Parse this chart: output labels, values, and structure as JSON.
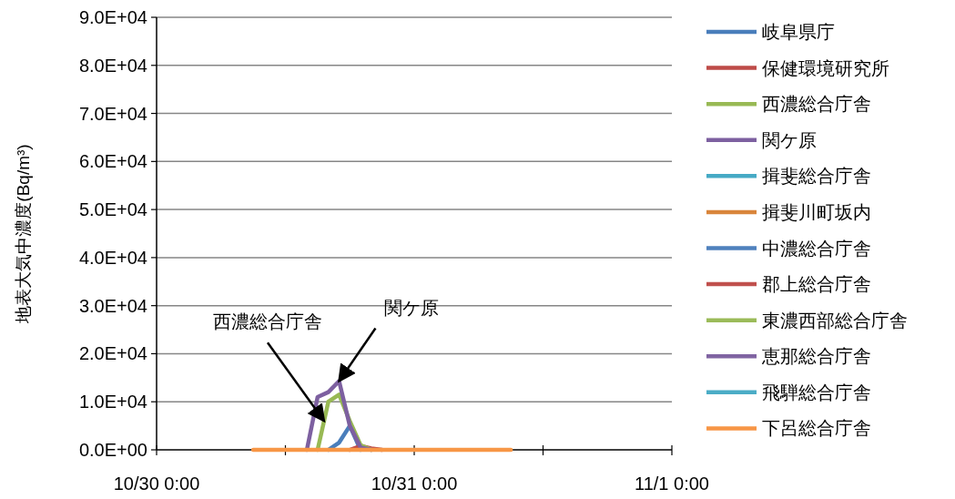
{
  "chart_data": {
    "type": "line",
    "ylabel": "地表大気中濃度(Bq/m³)",
    "x": [
      "--10-30T09:00",
      "--10-30T10:00",
      "--10-30T11:00",
      "--10-30T12:00",
      "--10-30T13:00",
      "--10-30T14:00",
      "--10-30T15:00",
      "--10-30T16:00",
      "--10-30T17:00",
      "--10-30T18:00",
      "--10-30T19:00",
      "--10-30T20:00",
      "--10-30T21:00",
      "--10-30T22:00",
      "--10-30T23:00",
      "--10-31T00:00",
      "--10-31T01:00",
      "--10-31T02:00",
      "--10-31T03:00",
      "--10-31T04:00",
      "--10-31T05:00",
      "--10-31T06:00",
      "--10-31T07:00",
      "--10-31T08:00",
      "--10-31T09:00"
    ],
    "xlim": [
      "--10-30T00:00",
      "--11-01T00:00"
    ],
    "xticks": [
      {
        "value": "--10-30T00:00",
        "label": "10/30 0:00"
      },
      {
        "value": "--10-30T12:00",
        "label": null
      },
      {
        "value": "--10-31T00:00",
        "label": "10/31 0:00"
      },
      {
        "value": "--10-31T12:00",
        "label": null
      },
      {
        "value": "--11-01T00:00",
        "label": "11/1 0:00"
      }
    ],
    "ylim": [
      0,
      90000
    ],
    "yticks": [
      {
        "value": 0,
        "label": "0.0E+00"
      },
      {
        "value": 10000,
        "label": "1.0E+04"
      },
      {
        "value": 20000,
        "label": "2.0E+04"
      },
      {
        "value": 30000,
        "label": "3.0E+04"
      },
      {
        "value": 40000,
        "label": "4.0E+04"
      },
      {
        "value": 50000,
        "label": "5.0E+04"
      },
      {
        "value": 60000,
        "label": "6.0E+04"
      },
      {
        "value": 70000,
        "label": "7.0E+04"
      },
      {
        "value": 80000,
        "label": "8.0E+04"
      },
      {
        "value": 90000,
        "label": "9.0E+04"
      }
    ],
    "grid": "y",
    "legend": "right",
    "marker": "none",
    "line_style": "solid",
    "series": [
      {
        "name": "岐阜県庁",
        "color": "#4a7ebb",
        "values": [
          null,
          null,
          null,
          null,
          null,
          null,
          null,
          0,
          1500,
          5000,
          0,
          null,
          null,
          null,
          null,
          null,
          null,
          null,
          null,
          null,
          null,
          null,
          null,
          null,
          null
        ]
      },
      {
        "name": "保健環境研究所",
        "color": "#be4b48",
        "values": [
          null,
          null,
          null,
          null,
          null,
          null,
          null,
          null,
          null,
          0,
          800,
          300,
          0,
          null,
          null,
          null,
          null,
          null,
          null,
          null,
          null,
          null,
          null,
          null,
          null
        ]
      },
      {
        "name": "西濃総合庁舎",
        "color": "#98b954",
        "values": [
          null,
          null,
          null,
          null,
          null,
          null,
          0,
          10000,
          11500,
          6000,
          1000,
          0,
          null,
          null,
          null,
          null,
          null,
          null,
          null,
          null,
          null,
          null,
          null,
          null,
          null
        ]
      },
      {
        "name": "関ケ原",
        "color": "#7d60a0",
        "values": [
          null,
          null,
          null,
          null,
          null,
          0,
          11000,
          12000,
          14300,
          5000,
          500,
          0,
          null,
          null,
          null,
          null,
          null,
          null,
          null,
          null,
          null,
          null,
          null,
          null,
          null
        ]
      },
      {
        "name": "揖斐総合庁舎",
        "color": "#46aac5",
        "values": [
          null,
          null,
          null,
          null,
          null,
          null,
          null,
          null,
          null,
          null,
          null,
          null,
          null,
          null,
          null,
          null,
          null,
          null,
          null,
          null,
          null,
          null,
          null,
          null,
          null
        ]
      },
      {
        "name": "揖斐川町坂内",
        "color": "#d9853b",
        "values": [
          null,
          null,
          null,
          null,
          null,
          null,
          null,
          null,
          null,
          null,
          null,
          null,
          null,
          null,
          null,
          null,
          null,
          null,
          null,
          null,
          null,
          null,
          null,
          null,
          null
        ]
      },
      {
        "name": "中濃総合庁舎",
        "color": "#4f81bd",
        "values": [
          null,
          null,
          null,
          null,
          null,
          null,
          null,
          null,
          null,
          null,
          null,
          null,
          null,
          null,
          null,
          null,
          null,
          null,
          null,
          null,
          null,
          null,
          null,
          null,
          null
        ]
      },
      {
        "name": "郡上総合庁舎",
        "color": "#c0504d",
        "values": [
          null,
          null,
          null,
          null,
          null,
          null,
          null,
          null,
          null,
          null,
          null,
          null,
          null,
          null,
          null,
          null,
          null,
          null,
          null,
          null,
          null,
          null,
          null,
          null,
          null
        ]
      },
      {
        "name": "東濃西部総合庁舎",
        "color": "#9bbb59",
        "values": [
          null,
          null,
          null,
          null,
          null,
          null,
          null,
          null,
          null,
          null,
          null,
          null,
          null,
          null,
          null,
          null,
          null,
          null,
          null,
          null,
          null,
          null,
          null,
          null,
          null
        ]
      },
      {
        "name": "恵那総合庁舎",
        "color": "#8064a2",
        "values": [
          null,
          null,
          null,
          null,
          null,
          null,
          null,
          null,
          null,
          null,
          null,
          null,
          null,
          null,
          null,
          null,
          null,
          null,
          null,
          null,
          null,
          null,
          null,
          null,
          null
        ]
      },
      {
        "name": "飛騨総合庁舎",
        "color": "#4bacc6",
        "values": [
          null,
          null,
          null,
          null,
          null,
          null,
          null,
          null,
          null,
          null,
          null,
          null,
          null,
          null,
          null,
          null,
          null,
          null,
          null,
          null,
          null,
          null,
          null,
          null,
          null
        ]
      },
      {
        "name": "下呂総合庁舎",
        "color": "#f79646",
        "values": [
          0,
          0,
          0,
          0,
          0,
          0,
          0,
          0,
          0,
          0,
          0,
          0,
          0,
          0,
          0,
          0,
          0,
          0,
          0,
          0,
          0,
          0,
          0,
          0,
          0
        ]
      }
    ],
    "annotations": [
      {
        "text": "西濃総合庁舎",
        "x": "--10-30T15:36",
        "y": 6000
      },
      {
        "text": "関ケ原",
        "x": "--10-30T17:00",
        "y": 14300
      }
    ]
  }
}
